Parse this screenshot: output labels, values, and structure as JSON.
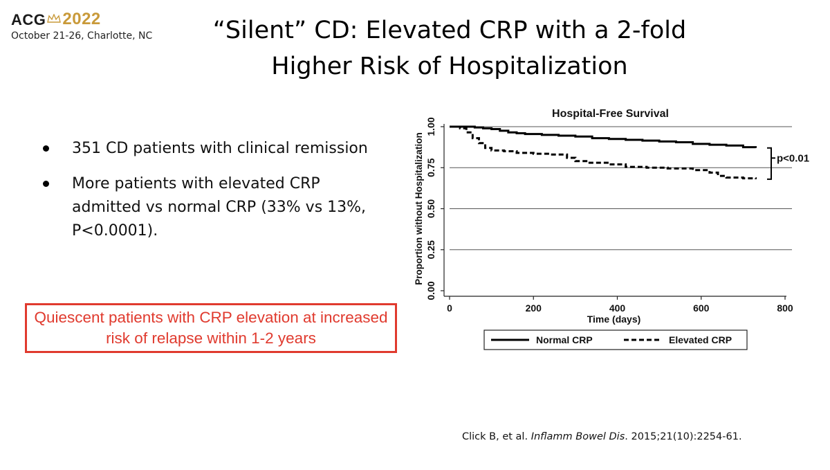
{
  "header": {
    "logo_acg": "ACG",
    "logo_year": "2022",
    "logo_subtitle": "October 21-26, Charlotte, NC",
    "title_line1": "“Silent” CD: Elevated CRP with a 2-fold",
    "title_line2": "Higher Risk of Hospitalization"
  },
  "bullets": [
    {
      "text": "351 CD patients with clinical remission"
    },
    {
      "text": "More patients with elevated CRP admitted vs normal CRP (33% vs 13%, P<0.0001)."
    }
  ],
  "callout": {
    "text": "Quiescent patients with CRP elevation at increased risk of relapse within 1-2 years"
  },
  "citation": {
    "authors": "Click B, et al. ",
    "journal": "Inflamm Bowel Dis",
    "details": ". 2015;21(10):2254-61."
  },
  "colors": {
    "callout_border": "#e03a2e",
    "callout_text": "#e03a2e",
    "logo_year": "#c99a3a"
  },
  "chart_data": {
    "type": "line",
    "title": "Hospital-Free Survival",
    "xlabel": "Time (days)",
    "ylabel": "Proportion without Hospitalization",
    "xlim": [
      0,
      800
    ],
    "ylim": [
      0,
      1
    ],
    "xticks": [
      0,
      200,
      400,
      600,
      800
    ],
    "yticks": [
      0,
      0.25,
      0.5,
      0.75,
      1
    ],
    "xtick_labels": [
      "0",
      "200",
      "400",
      "600",
      "800"
    ],
    "ytick_labels": [
      "0.00",
      "0.25",
      "0.50",
      "0.75",
      "1.00"
    ],
    "grid": "horizontal",
    "legend_position": "bottom",
    "annotation": "p<0.01",
    "series": [
      {
        "name": "Normal CRP",
        "style": "solid",
        "x": [
          0,
          20,
          40,
          60,
          80,
          100,
          120,
          140,
          160,
          180,
          220,
          260,
          300,
          340,
          380,
          420,
          460,
          500,
          540,
          580,
          620,
          660,
          700,
          730
        ],
        "y": [
          1.0,
          1.0,
          1.0,
          0.995,
          0.99,
          0.985,
          0.975,
          0.965,
          0.96,
          0.955,
          0.95,
          0.945,
          0.94,
          0.93,
          0.925,
          0.92,
          0.915,
          0.91,
          0.905,
          0.895,
          0.89,
          0.885,
          0.875,
          0.87
        ]
      },
      {
        "name": "Elevated CRP",
        "style": "dashed",
        "x": [
          0,
          25,
          40,
          55,
          70,
          85,
          100,
          130,
          160,
          200,
          240,
          280,
          300,
          330,
          380,
          420,
          470,
          520,
          580,
          620,
          640,
          660,
          700,
          730
        ],
        "y": [
          1.0,
          0.99,
          0.965,
          0.93,
          0.9,
          0.87,
          0.855,
          0.85,
          0.84,
          0.835,
          0.83,
          0.81,
          0.79,
          0.78,
          0.77,
          0.755,
          0.75,
          0.745,
          0.735,
          0.72,
          0.7,
          0.69,
          0.685,
          0.68
        ]
      }
    ]
  }
}
